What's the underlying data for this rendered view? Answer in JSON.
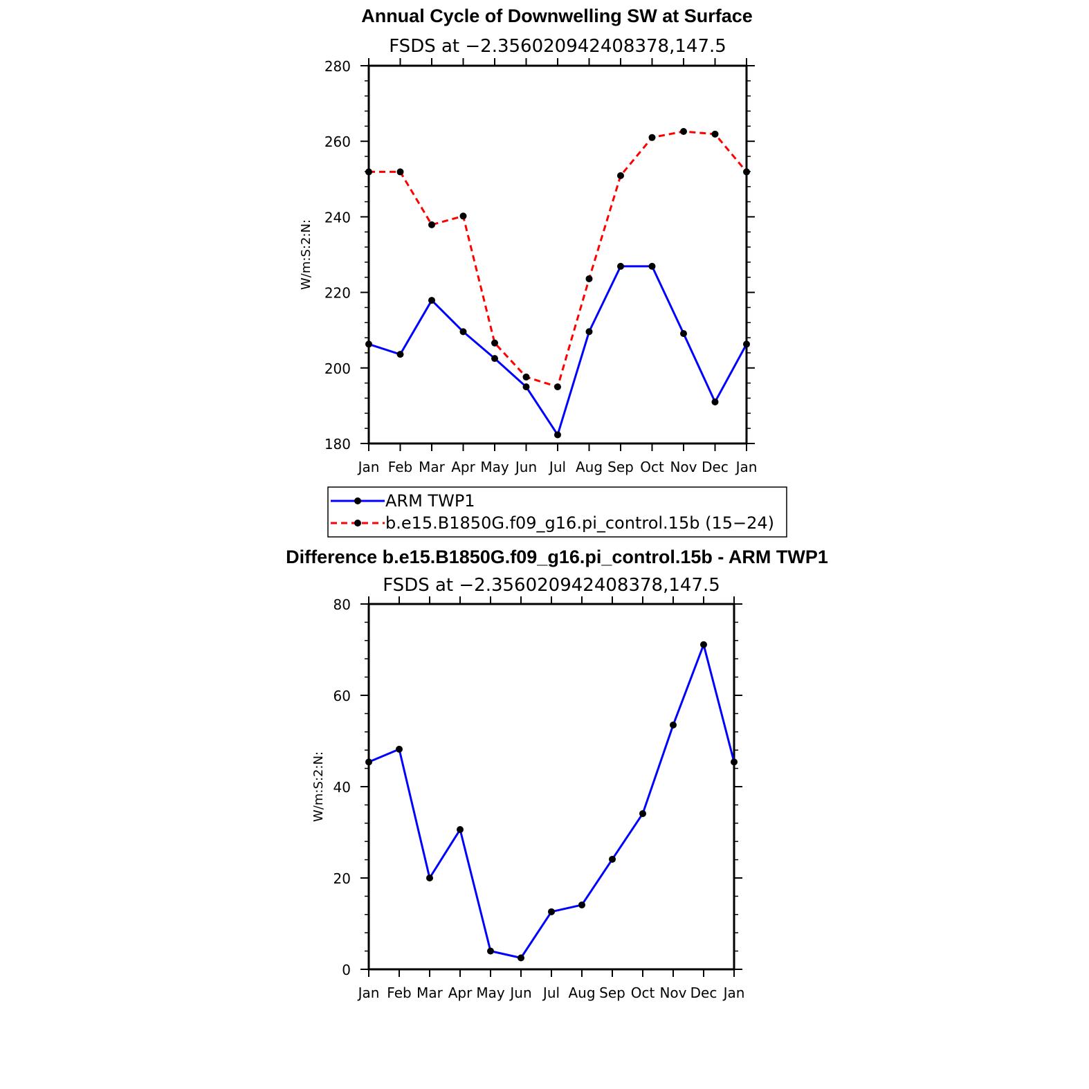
{
  "colors": {
    "obs": "#0000ff",
    "model": "#ff0000",
    "marker": "#000000"
  },
  "legend": {
    "entries": [
      {
        "label": "ARM TWP1",
        "color": "#0000ff",
        "dash": "solid"
      },
      {
        "label": "b.e15.B1850G.f09_g16.pi_control.15b (15−24)",
        "color": "#ff0000",
        "dash": "dashed"
      }
    ]
  },
  "chart_data": [
    {
      "type": "line",
      "title": "Annual Cycle of Downwelling SW at Surface",
      "subtitle": "FSDS at −2.356020942408378,147.5",
      "xlabel": "",
      "ylabel": "W/m:S:2:N:",
      "categories": [
        "Jan",
        "Feb",
        "Mar",
        "Apr",
        "May",
        "Jun",
        "Jul",
        "Aug",
        "Sep",
        "Oct",
        "Nov",
        "Dec",
        "Jan"
      ],
      "ylim": [
        180,
        280
      ],
      "yticks": [
        180,
        200,
        220,
        240,
        260,
        280
      ],
      "grid": false,
      "series": [
        {
          "name": "ARM TWP1",
          "color": "#0000ff",
          "dash": "solid",
          "values": [
            206.3,
            203.6,
            217.9,
            209.6,
            202.5,
            195.0,
            182.3,
            209.6,
            226.9,
            226.9,
            209.1,
            191.0,
            206.3
          ]
        },
        {
          "name": "b.e15.B1850G.f09_g16.pi_control.15b (15−24)",
          "color": "#ff0000",
          "dash": "dashed",
          "values": [
            251.9,
            251.9,
            237.9,
            240.2,
            206.6,
            197.6,
            195.0,
            223.6,
            250.9,
            261.0,
            262.6,
            261.9,
            251.9
          ]
        }
      ]
    },
    {
      "type": "line",
      "title": "Difference b.e15.B1850G.f09_g16.pi_control.15b - ARM TWP1",
      "subtitle": "FSDS at −2.356020942408378,147.5",
      "xlabel": "",
      "ylabel": "W/m:S:2:N:",
      "categories": [
        "Jan",
        "Feb",
        "Mar",
        "Apr",
        "May",
        "Jun",
        "Jul",
        "Aug",
        "Sep",
        "Oct",
        "Nov",
        "Dec",
        "Jan"
      ],
      "ylim": [
        0,
        80
      ],
      "yticks": [
        0,
        20,
        40,
        60,
        80
      ],
      "grid": false,
      "series": [
        {
          "color": "#0000ff",
          "dash": "solid",
          "values": [
            45.4,
            48.2,
            20.0,
            30.6,
            4.0,
            2.5,
            12.6,
            14.1,
            24.1,
            34.1,
            53.5,
            71.1,
            45.4
          ]
        }
      ]
    }
  ]
}
